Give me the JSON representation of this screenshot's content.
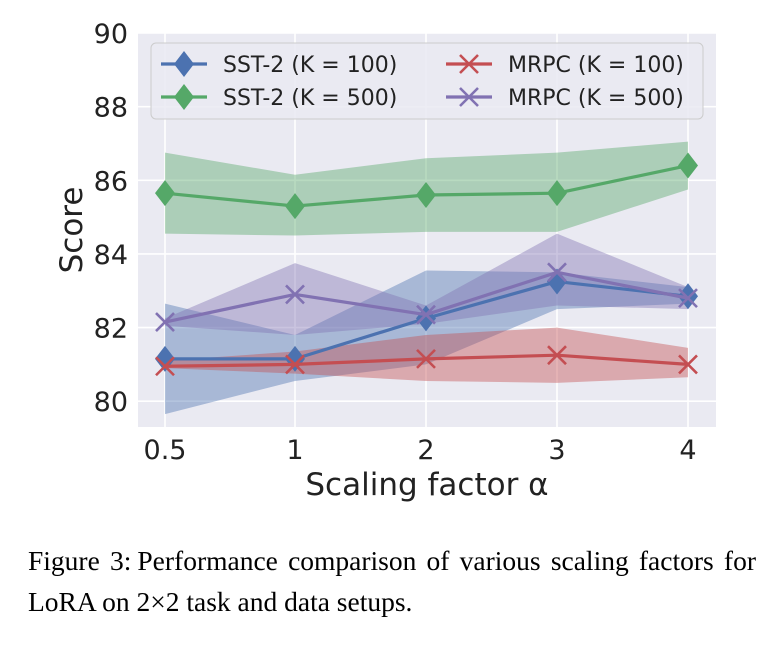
{
  "caption": {
    "label": "Figure 3:",
    "text": "Performance comparison of various scaling factors for LoRA on 2×2 task and data setups."
  },
  "chart_data": {
    "type": "line",
    "xlabel": "Scaling factor α",
    "ylabel": "Score",
    "x": [
      0.5,
      1,
      2,
      3,
      4
    ],
    "x_tick_labels": [
      "0.5",
      "1",
      "2",
      "3",
      "4"
    ],
    "ylim": [
      79.3,
      90
    ],
    "y_ticks": [
      80,
      82,
      84,
      86,
      88,
      90
    ],
    "grid": true,
    "legend_position": "top",
    "series": [
      {
        "name": "SST-2 (K = 100)",
        "color": "#4c72b0",
        "marker": "diamond",
        "values": [
          81.15,
          81.15,
          82.25,
          83.25,
          82.85
        ],
        "band_low": [
          79.65,
          80.55,
          81.0,
          82.5,
          82.65
        ],
        "band_high": [
          82.65,
          81.8,
          83.55,
          83.5,
          83.1
        ]
      },
      {
        "name": "SST-2 (K = 500)",
        "color": "#55a868",
        "marker": "diamond",
        "values": [
          85.65,
          85.3,
          85.6,
          85.65,
          86.4
        ],
        "band_low": [
          84.55,
          84.5,
          84.6,
          84.6,
          85.75
        ],
        "band_high": [
          86.75,
          86.15,
          86.6,
          86.75,
          87.05
        ]
      },
      {
        "name": "MRPC (K = 100)",
        "color": "#c44e52",
        "marker": "x",
        "values": [
          80.95,
          81.0,
          81.15,
          81.25,
          81.0
        ],
        "band_low": [
          80.9,
          80.75,
          80.55,
          80.5,
          80.65
        ],
        "band_high": [
          81.1,
          81.35,
          81.8,
          82.0,
          81.45
        ]
      },
      {
        "name": "MRPC (K = 500)",
        "color": "#8172b2",
        "marker": "x",
        "values": [
          82.15,
          82.9,
          82.35,
          83.5,
          82.8
        ],
        "band_low": [
          82.05,
          81.8,
          82.1,
          82.6,
          82.5
        ],
        "band_high": [
          82.25,
          83.75,
          82.6,
          84.55,
          83.1
        ]
      }
    ]
  }
}
